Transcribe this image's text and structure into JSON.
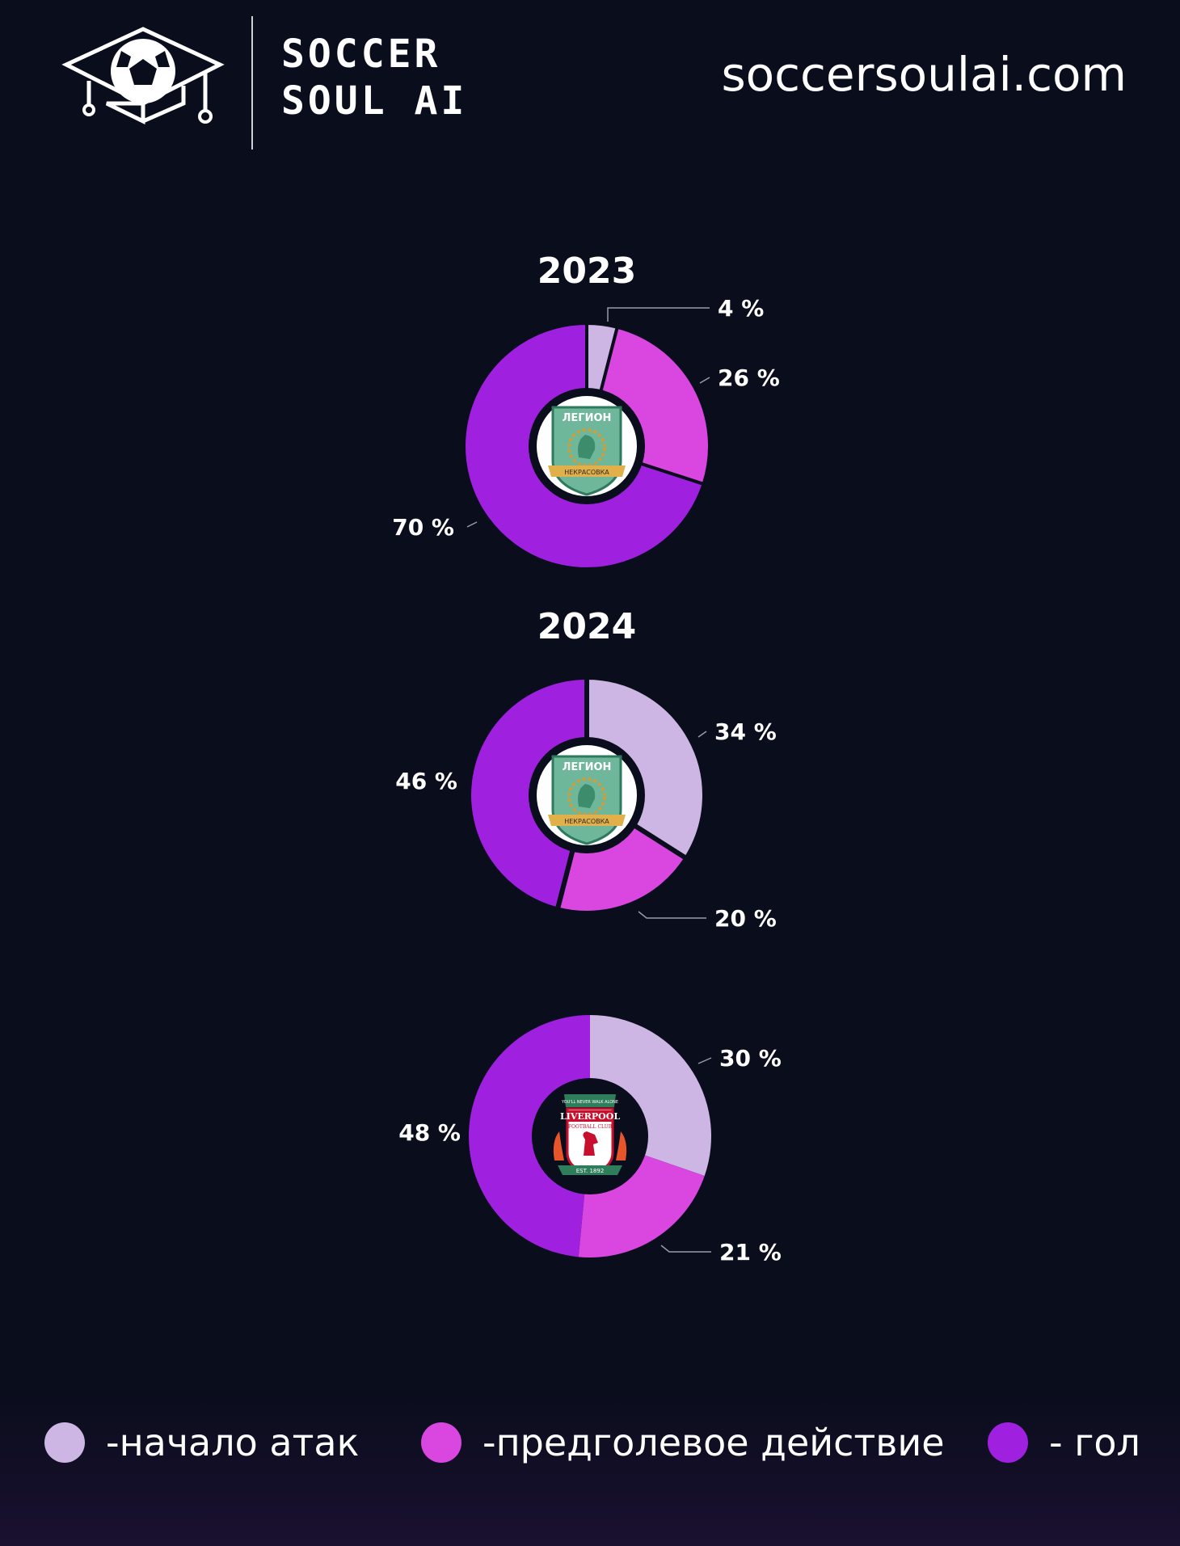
{
  "header": {
    "brand_line1": "SOCCER",
    "brand_line2": "SOUL AI",
    "site": "soccersoulai.com"
  },
  "colors": {
    "background": "#0a0d1c",
    "start_attack": "#cdb6e4",
    "pre_goal_action": "#d946e0",
    "goal": "#a020e0"
  },
  "chart_data": [
    {
      "type": "pie",
      "title": "2023",
      "center_icon": "legion-nekrasovka-crest",
      "categories": [
        "-начало атак",
        "-предголевое действие",
        "- гол"
      ],
      "values": [
        4,
        26,
        70
      ],
      "labels": [
        "4 %",
        "26 %",
        "70 %"
      ],
      "legend": "bottom"
    },
    {
      "type": "pie",
      "title": "2024",
      "center_icon": "legion-nekrasovka-crest",
      "categories": [
        "-начало атак",
        "-предголевое действие",
        "- гол"
      ],
      "values": [
        34,
        20,
        46
      ],
      "labels": [
        "34 %",
        "20 %",
        "46 %"
      ],
      "legend": "bottom"
    },
    {
      "type": "pie",
      "title": "",
      "center_icon": "liverpool-crest",
      "categories": [
        "-начало атак",
        "-предголевое действие",
        "- гол"
      ],
      "values": [
        30,
        21,
        48
      ],
      "labels": [
        "30 %",
        "21 %",
        "48 %"
      ],
      "legend": "bottom"
    }
  ],
  "legend": {
    "items": [
      {
        "label": "-начало атак",
        "color": "#cdb6e4"
      },
      {
        "label": "-предголевое действие",
        "color": "#d946e0"
      },
      {
        "label": "- гол",
        "color": "#a020e0"
      }
    ]
  },
  "crests": {
    "legion_top": "ЛЕГИОН",
    "legion_bottom": "НЕКРАСОВКА",
    "liverpool_motto": "YOU'LL NEVER WALK ALONE",
    "liverpool_name": "LIVERPOOL",
    "liverpool_sub": "FOOTBALL CLUB",
    "liverpool_est": "EST. 1892"
  }
}
